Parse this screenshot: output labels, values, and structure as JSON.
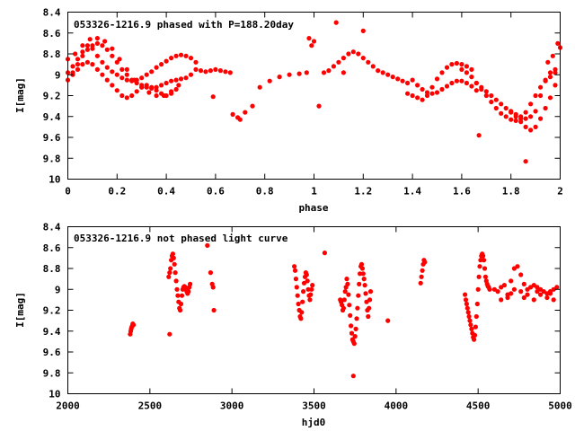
{
  "chart_data": [
    {
      "type": "scatter",
      "title": "053326-1216.9 phased with P=188.20day",
      "xlabel": "phase",
      "ylabel": "I[mag]",
      "xlim": [
        0,
        2
      ],
      "ylim": [
        8.4,
        10
      ],
      "y_inverted": true,
      "grid": false,
      "x_ticks": [
        "0",
        "0.2",
        "0.4",
        "0.6",
        "0.8",
        "1",
        "1.2",
        "1.4",
        "1.6",
        "1.8",
        "2"
      ],
      "y_ticks": [
        "8.4",
        "8.6",
        "8.8",
        "9",
        "9.2",
        "9.4",
        "9.6",
        "9.8",
        "10"
      ],
      "marker_color": "#ff0000",
      "series": [
        {
          "x": [
            0.0,
            0.02,
            0.04,
            0.06,
            0.08,
            0.1,
            0.12,
            0.14,
            0.16,
            0.18,
            0.2,
            0.22,
            0.24,
            0.26,
            0.28,
            0.3,
            0.32,
            0.34,
            0.36,
            0.38,
            0.4,
            0.42,
            0.44,
            0.46,
            0.48,
            0.5,
            0.52,
            0.0,
            0.02,
            0.04,
            0.06,
            0.08,
            0.1,
            0.12,
            0.14,
            0.16,
            0.18,
            0.2,
            0.22,
            0.24,
            0.26,
            0.28,
            0.3,
            0.32,
            0.34,
            0.36,
            0.38,
            0.4,
            0.42,
            0.44,
            0.46,
            0.48,
            0.5,
            0.02,
            0.04,
            0.06,
            0.08,
            0.1,
            0.12,
            0.14,
            0.16,
            0.18,
            0.2,
            0.22,
            0.24,
            0.26,
            0.28,
            0.3,
            0.32,
            0.34,
            0.36,
            0.38,
            0.4,
            0.42,
            0.44,
            0.0,
            0.03,
            0.06,
            0.09,
            0.12,
            0.15,
            0.18,
            0.21,
            0.24,
            0.27,
            0.3,
            0.33,
            0.36,
            0.39,
            0.42,
            0.45,
            0.52,
            0.54,
            0.56,
            0.58,
            0.6,
            0.62,
            0.64,
            0.66,
            0.59,
            0.69,
            0.67,
            0.7,
            0.72,
            0.75,
            0.78,
            0.82,
            0.86,
            0.9,
            0.94,
            0.97,
            0.98,
            0.99,
            1.0,
            1.02,
            1.09,
            1.12,
            1.04,
            1.06,
            1.08,
            1.1,
            1.12,
            1.14,
            1.16,
            1.18,
            1.2,
            1.22,
            1.24,
            1.26,
            1.28,
            1.3,
            1.32,
            1.34,
            1.36,
            1.38,
            1.2,
            1.38,
            1.4,
            1.42,
            1.44,
            1.46,
            1.48,
            1.5,
            1.52,
            1.54,
            1.56,
            1.58,
            1.6,
            1.62,
            1.64,
            1.4,
            1.42,
            1.44,
            1.46,
            1.48,
            1.5,
            1.52,
            1.54,
            1.56,
            1.58,
            1.6,
            1.62,
            1.64,
            1.66,
            1.6,
            1.62,
            1.64,
            1.66,
            1.68,
            1.7,
            1.72,
            1.74,
            1.76,
            1.78,
            1.8,
            1.82,
            1.84,
            1.86,
            1.88,
            1.9,
            1.92,
            1.94,
            1.96,
            1.98,
            1.66,
            1.68,
            1.7,
            1.72,
            1.74,
            1.76,
            1.78,
            1.8,
            1.82,
            1.84,
            1.86,
            1.88,
            1.9,
            1.92,
            1.94,
            1.96,
            1.98,
            1.8,
            1.82,
            1.84,
            1.86,
            1.88,
            1.9,
            1.92,
            1.94,
            1.96,
            1.98,
            1.95,
            1.97,
            1.99,
            1.67,
            1.86,
            2.0
          ],
          "y": [
            8.98,
            8.92,
            8.85,
            8.78,
            8.72,
            8.75,
            8.82,
            8.88,
            8.93,
            8.97,
            9.0,
            9.03,
            9.05,
            9.06,
            9.05,
            9.03,
            9.0,
            8.97,
            8.93,
            8.9,
            8.87,
            8.84,
            8.82,
            8.81,
            8.82,
            8.84,
            8.88,
            9.05,
            8.98,
            8.9,
            8.82,
            8.76,
            8.72,
            8.7,
            8.72,
            8.76,
            8.82,
            8.88,
            8.95,
            9.0,
            9.05,
            9.08,
            9.1,
            9.12,
            9.13,
            9.12,
            9.1,
            9.08,
            9.06,
            9.05,
            9.04,
            9.03,
            9.0,
            9.0,
            8.95,
            8.9,
            8.88,
            8.9,
            8.95,
            9.0,
            9.05,
            9.1,
            9.15,
            9.2,
            9.22,
            9.2,
            9.16,
            9.12,
            9.1,
            9.12,
            9.15,
            9.18,
            9.2,
            9.18,
            9.14,
            8.85,
            8.8,
            8.72,
            8.66,
            8.65,
            8.68,
            8.75,
            8.85,
            8.95,
            9.05,
            9.12,
            9.17,
            9.2,
            9.2,
            9.16,
            9.1,
            8.95,
            8.96,
            8.97,
            8.96,
            8.95,
            8.96,
            8.97,
            8.98,
            9.21,
            9.41,
            9.38,
            9.43,
            9.36,
            9.3,
            9.12,
            9.06,
            9.02,
            9.0,
            8.99,
            8.98,
            8.65,
            8.72,
            8.68,
            9.3,
            8.5,
            8.98,
            8.98,
            8.96,
            8.92,
            8.88,
            8.84,
            8.8,
            8.78,
            8.8,
            8.84,
            8.88,
            8.92,
            8.96,
            8.98,
            9.0,
            9.02,
            9.04,
            9.06,
            9.08,
            8.58,
            9.18,
            9.2,
            9.22,
            9.24,
            9.2,
            9.12,
            9.04,
            8.98,
            8.93,
            8.9,
            8.89,
            8.9,
            8.92,
            8.95,
            9.05,
            9.1,
            9.14,
            9.17,
            9.18,
            9.17,
            9.14,
            9.11,
            9.08,
            9.06,
            9.06,
            9.08,
            9.11,
            9.15,
            8.95,
            8.98,
            9.02,
            9.08,
            9.14,
            9.2,
            9.26,
            9.32,
            9.37,
            9.4,
            9.43,
            9.44,
            9.42,
            9.36,
            9.28,
            9.2,
            9.12,
            9.06,
            9.02,
            8.98,
            9.08,
            9.12,
            9.16,
            9.2,
            9.24,
            9.28,
            9.32,
            9.36,
            9.4,
            9.45,
            9.5,
            9.53,
            9.5,
            9.42,
            9.32,
            9.22,
            9.1,
            9.35,
            9.38,
            9.4,
            9.42,
            9.4,
            9.35,
            9.2,
            9.05,
            8.98,
            8.95,
            8.88,
            8.82,
            8.7,
            9.58,
            9.83,
            8.74
          ]
        }
      ]
    },
    {
      "type": "scatter",
      "title": "053326-1216.9 not phased light curve",
      "xlabel": "hjd0",
      "ylabel": "I[mag]",
      "xlim": [
        2000,
        5000
      ],
      "ylim": [
        8.4,
        10
      ],
      "y_inverted": true,
      "grid": false,
      "x_ticks": [
        "2000",
        "2500",
        "3000",
        "3500",
        "4000",
        "4500",
        "5000"
      ],
      "y_ticks": [
        "8.4",
        "8.6",
        "8.8",
        "9",
        "9.2",
        "9.4",
        "9.6",
        "9.8",
        "10"
      ],
      "marker_color": "#ff0000",
      "series": [
        {
          "x": [
            2380,
            2383,
            2386,
            2390,
            2393,
            2396,
            2400,
            2615,
            2620,
            2625,
            2630,
            2635,
            2640,
            2645,
            2650,
            2655,
            2660,
            2665,
            2670,
            2675,
            2680,
            2685,
            2690,
            2695,
            2700,
            2705,
            2710,
            2715,
            2720,
            2725,
            2730,
            2735,
            2740,
            2745,
            2620,
            2850,
            2870,
            2880,
            2885,
            2890,
            3380,
            3385,
            3390,
            3395,
            3400,
            3405,
            3410,
            3415,
            3420,
            3425,
            3430,
            3435,
            3440,
            3445,
            3450,
            3455,
            3460,
            3465,
            3470,
            3475,
            3480,
            3485,
            3490,
            3565,
            3660,
            3665,
            3670,
            3675,
            3680,
            3685,
            3690,
            3695,
            3700,
            3705,
            3710,
            3715,
            3720,
            3725,
            3730,
            3735,
            3740,
            3745,
            3750,
            3755,
            3760,
            3765,
            3770,
            3775,
            3780,
            3785,
            3790,
            3795,
            3800,
            3805,
            3810,
            3815,
            3820,
            3825,
            3830,
            3835,
            3840,
            3845,
            3740,
            3950,
            4150,
            4155,
            4160,
            4165,
            4170,
            4175,
            4420,
            4425,
            4430,
            4435,
            4440,
            4445,
            4450,
            4455,
            4460,
            4465,
            4470,
            4475,
            4480,
            4485,
            4490,
            4495,
            4500,
            4505,
            4510,
            4515,
            4520,
            4525,
            4530,
            4535,
            4540,
            4545,
            4550,
            4555,
            4560,
            4565,
            4570,
            4600,
            4620,
            4640,
            4660,
            4680,
            4700,
            4720,
            4740,
            4760,
            4780,
            4800,
            4820,
            4840,
            4860,
            4880,
            4900,
            4920,
            4940,
            4960,
            4980,
            4680,
            4720,
            4760,
            4800,
            4840,
            4880,
            4920,
            4960,
            4640,
            4700,
            4780,
            4860,
            4940
          ],
          "y": [
            9.43,
            9.4,
            9.38,
            9.36,
            9.35,
            9.33,
            9.34,
            8.88,
            8.84,
            8.8,
            8.72,
            8.68,
            8.66,
            8.7,
            8.76,
            8.84,
            8.92,
            9.0,
            9.06,
            9.12,
            9.18,
            9.2,
            9.14,
            9.06,
            9.0,
            8.98,
            8.97,
            8.98,
            9.0,
            9.02,
            9.04,
            9.02,
            8.98,
            8.95,
            9.43,
            8.58,
            8.84,
            8.95,
            8.98,
            9.2,
            8.78,
            8.82,
            8.9,
            8.98,
            9.06,
            9.14,
            9.2,
            9.26,
            9.28,
            9.22,
            9.12,
            9.02,
            8.94,
            8.88,
            8.84,
            8.86,
            8.92,
            9.0,
            9.06,
            9.1,
            9.05,
            9.0,
            8.96,
            8.65,
            9.1,
            9.12,
            9.15,
            9.2,
            9.18,
            9.1,
            9.02,
            8.98,
            8.9,
            8.95,
            9.05,
            9.15,
            9.25,
            9.35,
            9.42,
            9.48,
            9.5,
            9.52,
            9.45,
            9.38,
            9.28,
            9.18,
            9.06,
            8.95,
            8.85,
            8.78,
            8.76,
            8.8,
            8.85,
            8.9,
            8.96,
            9.04,
            9.12,
            9.2,
            9.26,
            9.18,
            9.1,
            9.02,
            9.83,
            9.3,
            8.94,
            8.88,
            8.82,
            8.76,
            8.72,
            8.74,
            9.05,
            9.1,
            9.14,
            9.18,
            9.22,
            9.26,
            9.3,
            9.34,
            9.38,
            9.42,
            9.46,
            9.48,
            9.44,
            9.36,
            9.26,
            9.14,
            9.0,
            8.88,
            8.78,
            8.72,
            8.68,
            8.66,
            8.68,
            8.72,
            8.8,
            8.88,
            8.92,
            8.95,
            8.97,
            8.98,
            9.0,
            9.0,
            9.02,
            8.98,
            8.96,
            9.05,
            8.92,
            8.8,
            8.78,
            8.86,
            8.95,
            9.0,
            8.98,
            8.96,
            8.98,
            9.0,
            9.02,
            9.04,
            9.02,
            9.0,
            8.98,
            9.08,
            9.0,
            9.02,
            9.05,
            9.1,
            9.05,
            9.08,
            9.1,
            9.1,
            9.04,
            9.08,
            9.02,
            9.04
          ]
        }
      ]
    }
  ]
}
